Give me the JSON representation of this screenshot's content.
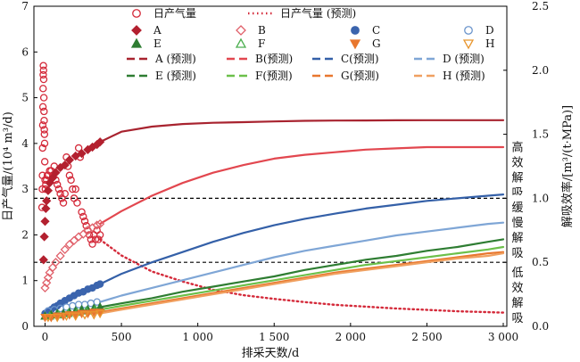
{
  "chart_data": {
    "type": "scatter",
    "xlabel": "排采天数/d",
    "ylabel": "日产气量/(10⁴ m³/d)",
    "y2label": "解吸效率/[m³/(t·MPa)]",
    "xlim": [
      -50,
      3000
    ],
    "ylim": [
      0,
      7
    ],
    "y2lim": [
      0,
      2.5
    ],
    "x_ticks": [
      0,
      500,
      1000,
      1500,
      2000,
      2500,
      3000
    ],
    "x_tick_labels": [
      "0",
      "500",
      "1 000",
      "1 500",
      "2 000",
      "2 500",
      "3 000"
    ],
    "y_ticks": [
      0,
      1,
      2,
      3,
      4,
      5,
      6,
      7
    ],
    "y_tick_labels": [
      "0",
      "1",
      "2",
      "3",
      "4",
      "5",
      "6",
      "7"
    ],
    "y2_ticks": [
      0,
      0.5,
      1.0,
      1.5,
      2.0,
      2.5
    ],
    "y2_tick_labels": [
      "0.0",
      "0.5",
      "1.0",
      "1.5",
      "2.0",
      "2.5"
    ],
    "reference_lines_y2": [
      1.0,
      0.5
    ],
    "zone_labels": [
      {
        "text": [
          "高",
          "效",
          "解",
          "吸"
        ],
        "y2": 1.22
      },
      {
        "text": [
          "缓",
          "慢",
          "解",
          "吸"
        ],
        "y2": 0.75
      },
      {
        "text": [
          "低",
          "效",
          "解",
          "吸"
        ],
        "y2": 0.24
      }
    ],
    "legend": {
      "rows": [
        [
          {
            "key": "daily_obs",
            "label": "日产气量"
          },
          {
            "key": "daily_pred",
            "label": "日产气量 (预测)"
          }
        ],
        [
          {
            "key": "A",
            "label": "A"
          },
          {
            "key": "B",
            "label": "B"
          },
          {
            "key": "C",
            "label": "C"
          },
          {
            "key": "D",
            "label": "D"
          }
        ],
        [
          {
            "key": "E",
            "label": "E"
          },
          {
            "key": "F",
            "label": "F"
          },
          {
            "key": "G",
            "label": "G"
          },
          {
            "key": "H",
            "label": "H"
          }
        ],
        [
          {
            "key": "A_pred",
            "label": "A (预测)"
          },
          {
            "key": "B_pred",
            "label": "B(预测)"
          },
          {
            "key": "C_pred",
            "label": "C(预测)"
          },
          {
            "key": "D_pred",
            "label": "D (预测)"
          }
        ],
        [
          {
            "key": "E_pred",
            "label": "E (预测)"
          },
          {
            "key": "F_pred",
            "label": "F(预测)"
          },
          {
            "key": "G_pred",
            "label": "G(预测)"
          },
          {
            "key": "H_pred",
            "label": "H (预测)"
          }
        ]
      ]
    },
    "styles": {
      "daily_obs": {
        "marker": "circle-open",
        "color": "#d42a3a"
      },
      "daily_pred": {
        "line": "dotted",
        "color": "#d42a3a"
      },
      "A": {
        "marker": "diamond-filled",
        "color": "#b3202f"
      },
      "B": {
        "marker": "diamond-open",
        "color": "#e0606a"
      },
      "C": {
        "marker": "circle-filled",
        "color": "#3b64ad"
      },
      "D": {
        "marker": "circle-open",
        "color": "#6b95cc"
      },
      "E": {
        "marker": "triangle-up-filled",
        "color": "#2e7d32"
      },
      "F": {
        "marker": "triangle-up-open",
        "color": "#4caf50"
      },
      "G": {
        "marker": "triangle-down-filled",
        "color": "#e8772e"
      },
      "H": {
        "marker": "triangle-down-open",
        "color": "#e8962e"
      },
      "A_pred": {
        "line": "solid",
        "color": "#a8232f"
      },
      "B_pred": {
        "line": "solid",
        "color": "#e2474f"
      },
      "C_pred": {
        "line": "solid",
        "color": "#3460a8"
      },
      "D_pred": {
        "line": "solid",
        "color": "#7fa6d6"
      },
      "E_pred": {
        "line": "solid",
        "color": "#2e7d32"
      },
      "F_pred": {
        "line": "solid",
        "color": "#6cc04a"
      },
      "G_pred": {
        "line": "solid",
        "color": "#e8772e"
      },
      "H_pred": {
        "line": "solid",
        "color": "#f0a060"
      }
    },
    "series": [
      {
        "key": "daily_obs",
        "axis": "left",
        "kind": "scatter",
        "x": [
          -20,
          -18,
          -17,
          -16,
          -15,
          -14,
          -13,
          -12,
          -11,
          -10,
          -9,
          -8,
          -7,
          -6,
          -5,
          -4,
          -3,
          -2,
          0,
          2,
          5,
          10,
          15,
          20,
          30,
          40,
          50,
          60,
          70,
          80,
          90,
          100,
          110,
          120,
          130,
          140,
          150,
          160,
          170,
          180,
          190,
          200,
          210,
          220,
          230,
          240,
          250,
          260,
          270,
          280,
          290,
          300,
          310,
          320,
          330,
          340,
          350,
          360
        ],
        "y": [
          2.6,
          3.0,
          3.3,
          3.9,
          4.4,
          4.8,
          5.2,
          5.5,
          5.7,
          5.6,
          5.4,
          5.0,
          4.7,
          4.5,
          4.3,
          4.2,
          4.0,
          3.6,
          3.2,
          3.0,
          3.1,
          3.2,
          3.3,
          3.3,
          3.4,
          3.4,
          3.3,
          3.5,
          3.2,
          3.1,
          3.0,
          2.9,
          2.8,
          2.7,
          2.9,
          3.7,
          3.5,
          3.3,
          3.2,
          3.0,
          2.8,
          3.0,
          2.7,
          3.9,
          3.7,
          2.5,
          2.4,
          2.3,
          2.2,
          2.1,
          2.0,
          1.9,
          1.8,
          2.0,
          1.9,
          2.1,
          1.9,
          2.0
        ]
      },
      {
        "key": "daily_pred",
        "axis": "left",
        "kind": "line",
        "x": [
          360,
          500,
          700,
          900,
          1100,
          1300,
          1500,
          1700,
          1900,
          2100,
          2300,
          2500,
          2700,
          2900,
          3000
        ],
        "y": [
          1.9,
          1.55,
          1.2,
          0.98,
          0.8,
          0.68,
          0.6,
          0.53,
          0.47,
          0.43,
          0.39,
          0.36,
          0.33,
          0.31,
          0.3
        ]
      },
      {
        "key": "A",
        "axis": "right",
        "kind": "scatter",
        "x": [
          -10,
          -5,
          0,
          5,
          10,
          20,
          30,
          50,
          70,
          100,
          130,
          160,
          200,
          240,
          280,
          310,
          340,
          360
        ],
        "y": [
          0.52,
          0.7,
          0.82,
          0.92,
          0.98,
          1.06,
          1.12,
          1.16,
          1.2,
          1.24,
          1.26,
          1.3,
          1.33,
          1.35,
          1.38,
          1.4,
          1.42,
          1.44
        ]
      },
      {
        "key": "B",
        "axis": "right",
        "kind": "scatter",
        "x": [
          0,
          10,
          20,
          30,
          50,
          70,
          100,
          130,
          160,
          190,
          220,
          250,
          280,
          310,
          340,
          360
        ],
        "y": [
          0.3,
          0.34,
          0.38,
          0.42,
          0.46,
          0.5,
          0.55,
          0.6,
          0.64,
          0.67,
          0.7,
          0.72,
          0.75,
          0.77,
          0.79,
          0.8
        ]
      },
      {
        "key": "C",
        "axis": "right",
        "kind": "scatter",
        "x": [
          0,
          20,
          40,
          60,
          80,
          100,
          130,
          160,
          190,
          220,
          250,
          280,
          310,
          340,
          360
        ],
        "y": [
          0.1,
          0.11,
          0.13,
          0.15,
          0.16,
          0.18,
          0.2,
          0.22,
          0.24,
          0.26,
          0.27,
          0.29,
          0.3,
          0.32,
          0.33
        ]
      },
      {
        "key": "D",
        "axis": "right",
        "kind": "scatter",
        "x": [
          20,
          60,
          100,
          140,
          180,
          220,
          260,
          300,
          340
        ],
        "y": [
          0.12,
          0.13,
          0.14,
          0.15,
          0.16,
          0.17,
          0.17,
          0.18,
          0.19
        ]
      },
      {
        "key": "E",
        "axis": "right",
        "kind": "scatter",
        "x": [
          0,
          40,
          80,
          120,
          160,
          200,
          240,
          280,
          320,
          360
        ],
        "y": [
          0.08,
          0.09,
          0.1,
          0.1,
          0.11,
          0.12,
          0.13,
          0.13,
          0.14,
          0.15
        ]
      },
      {
        "key": "F",
        "axis": "right",
        "kind": "scatter",
        "x": [
          30,
          90,
          150,
          210,
          270,
          330
        ],
        "y": [
          0.08,
          0.09,
          0.1,
          0.11,
          0.12,
          0.13
        ]
      },
      {
        "key": "G",
        "axis": "right",
        "kind": "scatter",
        "x": [
          0,
          40,
          80,
          120,
          160,
          200,
          240,
          280,
          320,
          360
        ],
        "y": [
          0.07,
          0.07,
          0.08,
          0.08,
          0.09,
          0.09,
          0.1,
          0.1,
          0.11,
          0.11
        ]
      },
      {
        "key": "H",
        "axis": "right",
        "kind": "scatter",
        "x": [
          20,
          80,
          140,
          200,
          260,
          320,
          360
        ],
        "y": [
          0.07,
          0.07,
          0.08,
          0.08,
          0.09,
          0.09,
          0.1
        ]
      },
      {
        "key": "A_pred",
        "axis": "right",
        "kind": "line",
        "x": [
          360,
          500,
          700,
          900,
          1100,
          1300,
          1500,
          1700,
          1900,
          2100,
          2300,
          2500,
          2700,
          2900,
          3000
        ],
        "y": [
          1.44,
          1.52,
          1.56,
          1.58,
          1.59,
          1.595,
          1.6,
          1.605,
          1.607,
          1.608,
          1.609,
          1.61,
          1.61,
          1.61,
          1.61
        ]
      },
      {
        "key": "B_pred",
        "axis": "right",
        "kind": "line",
        "x": [
          360,
          500,
          700,
          900,
          1100,
          1300,
          1500,
          1700,
          1900,
          2100,
          2300,
          2500,
          2700,
          2900,
          3000
        ],
        "y": [
          0.8,
          0.9,
          1.02,
          1.12,
          1.2,
          1.26,
          1.31,
          1.34,
          1.36,
          1.38,
          1.39,
          1.4,
          1.4,
          1.4,
          1.4
        ]
      },
      {
        "key": "C_pred",
        "axis": "right",
        "kind": "line",
        "x": [
          360,
          500,
          700,
          900,
          1100,
          1300,
          1500,
          1700,
          1900,
          2100,
          2300,
          2500,
          2700,
          2900,
          3000
        ],
        "y": [
          0.33,
          0.41,
          0.5,
          0.58,
          0.66,
          0.73,
          0.79,
          0.84,
          0.88,
          0.92,
          0.95,
          0.98,
          1.0,
          1.02,
          1.03
        ]
      },
      {
        "key": "D_pred",
        "axis": "right",
        "kind": "line",
        "x": [
          360,
          500,
          700,
          900,
          1100,
          1300,
          1500,
          1700,
          1900,
          2100,
          2300,
          2500,
          2700,
          2900,
          3000
        ],
        "y": [
          0.19,
          0.24,
          0.3,
          0.36,
          0.42,
          0.48,
          0.54,
          0.59,
          0.63,
          0.67,
          0.71,
          0.74,
          0.77,
          0.8,
          0.81
        ]
      },
      {
        "key": "E_pred",
        "axis": "right",
        "kind": "line",
        "x": [
          360,
          500,
          700,
          900,
          1100,
          1300,
          1500,
          1700,
          1900,
          2100,
          2300,
          2500,
          2700,
          2900,
          3000
        ],
        "y": [
          0.15,
          0.18,
          0.22,
          0.27,
          0.31,
          0.35,
          0.39,
          0.44,
          0.48,
          0.52,
          0.55,
          0.59,
          0.62,
          0.66,
          0.68
        ]
      },
      {
        "key": "F_pred",
        "axis": "right",
        "kind": "line",
        "x": [
          360,
          500,
          700,
          900,
          1100,
          1300,
          1500,
          1700,
          1900,
          2100,
          2300,
          2500,
          2700,
          2900,
          3000
        ],
        "y": [
          0.13,
          0.16,
          0.2,
          0.24,
          0.28,
          0.32,
          0.36,
          0.4,
          0.44,
          0.48,
          0.51,
          0.54,
          0.57,
          0.6,
          0.62
        ]
      },
      {
        "key": "G_pred",
        "axis": "right",
        "kind": "line",
        "x": [
          360,
          500,
          700,
          900,
          1100,
          1300,
          1500,
          1700,
          1900,
          2100,
          2300,
          2500,
          2700,
          2900,
          3000
        ],
        "y": [
          0.11,
          0.14,
          0.18,
          0.22,
          0.26,
          0.3,
          0.34,
          0.38,
          0.42,
          0.45,
          0.48,
          0.51,
          0.54,
          0.57,
          0.58
        ]
      },
      {
        "key": "H_pred",
        "axis": "right",
        "kind": "line",
        "x": [
          360,
          500,
          700,
          900,
          1100,
          1300,
          1500,
          1700,
          1900,
          2100,
          2300,
          2500,
          2700,
          2900,
          3000
        ],
        "y": [
          0.1,
          0.13,
          0.17,
          0.21,
          0.25,
          0.29,
          0.33,
          0.37,
          0.41,
          0.44,
          0.47,
          0.5,
          0.53,
          0.55,
          0.57
        ]
      }
    ]
  }
}
